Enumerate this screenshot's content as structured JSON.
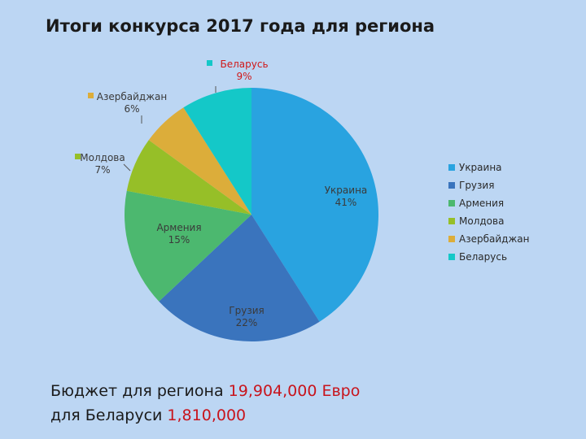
{
  "title": "Итоги конкурса 2017 года для региона",
  "chart_data": {
    "type": "pie",
    "slices": [
      {
        "name": "Украина",
        "value": 41,
        "label": "41%",
        "color": "#29a3e0"
      },
      {
        "name": "Грузия",
        "value": 22,
        "label": "22%",
        "color": "#3a74bd"
      },
      {
        "name": "Армения",
        "value": 15,
        "label": "15%",
        "color": "#4cb86f"
      },
      {
        "name": "Молдова",
        "value": 7,
        "label": "7%",
        "color": "#96bf28"
      },
      {
        "name": "Азербайджан",
        "value": 6,
        "label": "6%",
        "color": "#dcad3a"
      },
      {
        "name": "Беларусь",
        "value": 9,
        "label": "9%",
        "color": "#14c8c8"
      }
    ],
    "legend_position": "right",
    "highlight_color": "#d01818"
  },
  "budget": {
    "line1_prefix": "Бюджет для региона",
    "line1_amount": "19,904,000 Евро",
    "line2_prefix": "для Беларуси",
    "line2_amount": "1,810,000"
  }
}
